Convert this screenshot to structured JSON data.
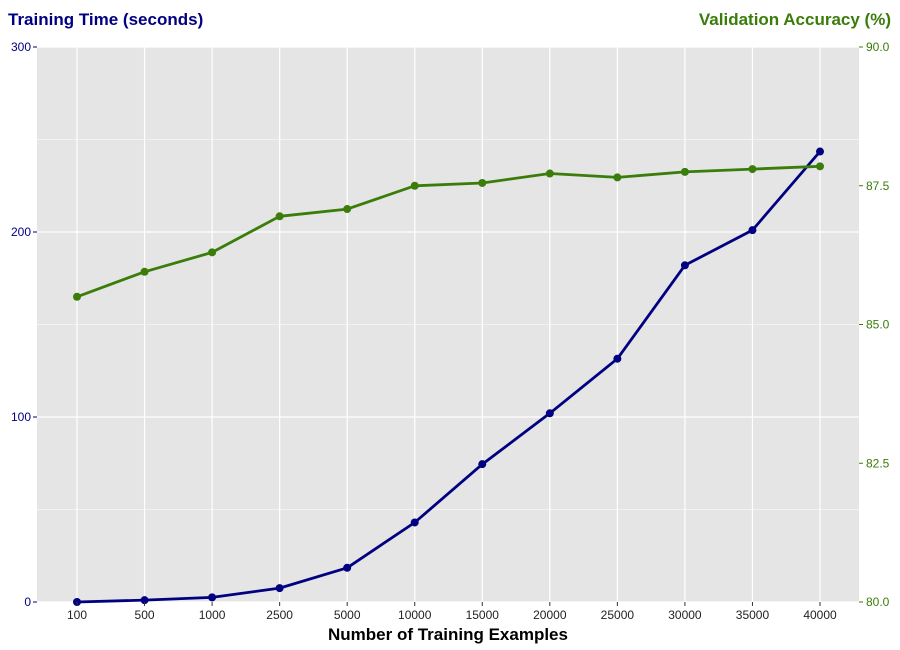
{
  "chart_data": {
    "type": "line",
    "title_left": "Training Time (seconds)",
    "title_right": "Validation Accuracy (%)",
    "xlabel": "Number of Training Examples",
    "categories": [
      "100",
      "500",
      "1000",
      "2500",
      "5000",
      "10000",
      "15000",
      "20000",
      "25000",
      "30000",
      "35000",
      "40000"
    ],
    "y_left": {
      "ylim": [
        0,
        300
      ],
      "ticks": [
        "0",
        "100",
        "200",
        "300"
      ]
    },
    "y_right": {
      "ylim": [
        80.0,
        90.0
      ],
      "ticks": [
        "80.0",
        "82.5",
        "85.0",
        "87.5",
        "90.0"
      ]
    },
    "series": [
      {
        "axis": "left",
        "color": "#000080",
        "values": [
          0,
          1,
          2.5,
          7.5,
          18.5,
          43,
          74.5,
          102,
          131.5,
          182,
          201,
          243.5
        ]
      },
      {
        "axis": "right",
        "color": "#3a7d0a",
        "values": [
          85.5,
          85.95,
          86.3,
          86.95,
          87.08,
          87.5,
          87.55,
          87.72,
          87.65,
          87.75,
          87.8,
          87.85
        ]
      }
    ],
    "grid": true,
    "panel_background": "#e5e5e5",
    "left_color": "#000080",
    "right_color": "#3a7d0a"
  }
}
